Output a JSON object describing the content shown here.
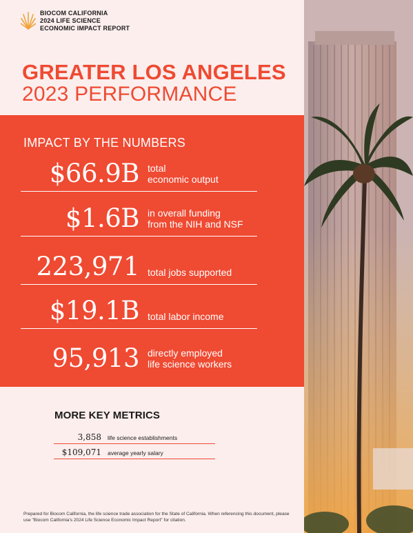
{
  "header": {
    "logo_lines": [
      "BIOCOM CALIFORNIA",
      "2024 LIFE SCIENCE",
      "ECONOMIC IMPACT REPORT"
    ],
    "title_line1": "GREATER LOS ANGELES",
    "title_line2": "2023 PERFORMANCE"
  },
  "impact": {
    "title": "IMPACT BY THE NUMBERS",
    "stats": [
      {
        "value": "$66.9B",
        "label_lines": [
          "total",
          "economic output"
        ]
      },
      {
        "value": "$1.6B",
        "label_lines": [
          "in overall funding",
          "from the NIH and NSF"
        ]
      },
      {
        "value": "223,971",
        "label_lines": [
          "total jobs supported"
        ]
      },
      {
        "value": "$19.1B",
        "label_lines": [
          "total labor income"
        ]
      },
      {
        "value": "95,913",
        "label_lines": [
          "directly employed",
          "life science workers"
        ]
      }
    ]
  },
  "more_metrics": {
    "title": "MORE KEY METRICS",
    "items": [
      {
        "value": "3,858",
        "label": "life science establishments"
      },
      {
        "value": "$109,071",
        "label": "average yearly salary"
      }
    ]
  },
  "footer": {
    "citation": "Prepared for Biocom California, the life science trade association for the State of California. When referencing this document, please use \"Biocom California's 2024 Life Science Economic Impact Report\" for citation."
  },
  "colors": {
    "accent": "#ef4a32",
    "background": "#fbeeed",
    "text": "#1a1a1a"
  }
}
